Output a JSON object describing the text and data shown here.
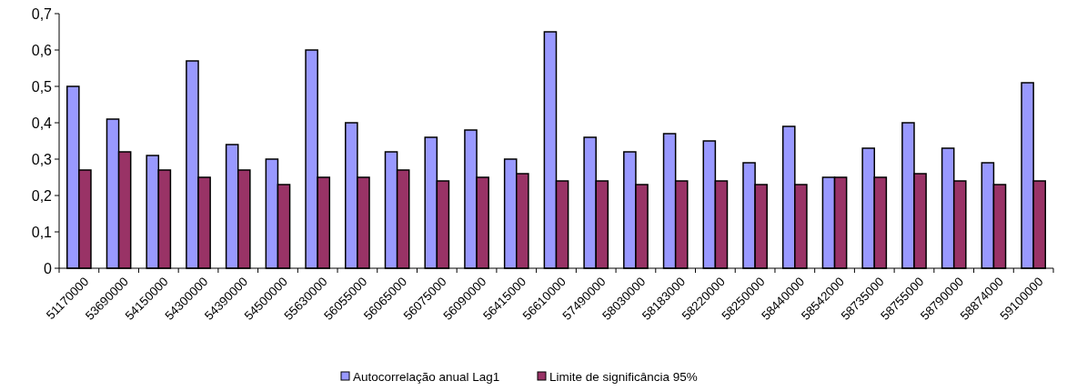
{
  "chart_data": {
    "type": "bar",
    "categories": [
      "51170000",
      "53690000",
      "54150000",
      "54300000",
      "54390000",
      "54500000",
      "55630000",
      "56055000",
      "56065000",
      "56075000",
      "56090000",
      "56415000",
      "56610000",
      "57490000",
      "58030000",
      "58183000",
      "58220000",
      "58250000",
      "58440000",
      "58542000",
      "58735000",
      "58755000",
      "58790000",
      "58874000",
      "59100000"
    ],
    "series": [
      {
        "name": "Autocorrelação anual Lag1",
        "color": "#9999ff",
        "values": [
          0.5,
          0.41,
          0.31,
          0.57,
          0.34,
          0.3,
          0.6,
          0.4,
          0.32,
          0.36,
          0.38,
          0.3,
          0.65,
          0.36,
          0.32,
          0.37,
          0.35,
          0.29,
          0.39,
          0.25,
          0.33,
          0.4,
          0.33,
          0.29,
          0.51
        ]
      },
      {
        "name": "Limite de significância 95%",
        "color": "#993366",
        "values": [
          0.27,
          0.32,
          0.27,
          0.25,
          0.27,
          0.23,
          0.25,
          0.25,
          0.27,
          0.24,
          0.25,
          0.26,
          0.24,
          0.24,
          0.23,
          0.24,
          0.24,
          0.23,
          0.23,
          0.25,
          0.25,
          0.26,
          0.24,
          0.23,
          0.24
        ]
      }
    ],
    "ylim": [
      0,
      0.7
    ],
    "yticks": [
      {
        "value": 0,
        "label": "0"
      },
      {
        "value": 0.1,
        "label": "0,1"
      },
      {
        "value": 0.2,
        "label": "0,2"
      },
      {
        "value": 0.3,
        "label": "0,3"
      },
      {
        "value": 0.4,
        "label": "0,4"
      },
      {
        "value": 0.5,
        "label": "0,5"
      },
      {
        "value": 0.6,
        "label": "0,6"
      },
      {
        "value": 0.7,
        "label": "0,7"
      }
    ],
    "grid": false,
    "legend": "bottom"
  }
}
